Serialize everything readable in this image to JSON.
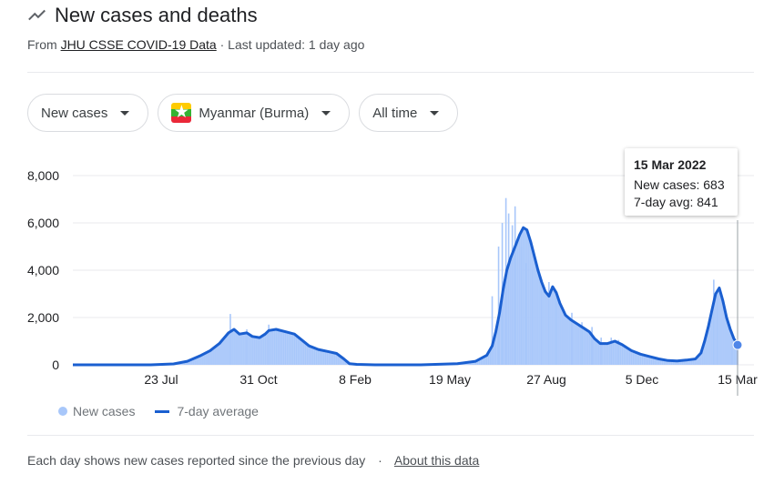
{
  "header": {
    "title": "New cases and deaths",
    "icon": "trending-icon"
  },
  "source": {
    "prefix": "From",
    "link": "JHU CSSE COVID-19 Data",
    "updated": "· Last updated: 1 day ago"
  },
  "filters": {
    "metric": "New cases",
    "location": "Myanmar (Burma)",
    "range": "All time"
  },
  "tooltip": {
    "date": "15 Mar 2022",
    "new_cases": "New cases: 683",
    "avg": "7-day avg: 841"
  },
  "legend": {
    "bars": "New cases",
    "line": "7-day average"
  },
  "footer": {
    "note": "Each day shows new cases reported since the previous day",
    "sep": "·",
    "link": "About this data"
  },
  "colors": {
    "bar": "#a8c7fa",
    "line": "#1a5fd0",
    "grid": "#e8eaed",
    "text": "#202124"
  },
  "chart_data": {
    "type": "bar",
    "title": "New cases and deaths",
    "y_ticks": [
      "8,000",
      "6,000",
      "4,000",
      "2,000",
      "0"
    ],
    "x_ticks": [
      "23 Jul",
      "31 Oct",
      "8 Feb",
      "19 May",
      "27 Aug",
      "5 Dec",
      "15 Mar"
    ],
    "ylim": [
      0,
      8000
    ],
    "grid": true,
    "legend_position": "bottom-left",
    "series": [
      {
        "name": "7-day average",
        "type": "line",
        "points": [
          [
            0,
            0
          ],
          [
            40,
            0
          ],
          [
            85,
            0
          ],
          [
            110,
            40
          ],
          [
            125,
            150
          ],
          [
            140,
            400
          ],
          [
            150,
            600
          ],
          [
            160,
            900
          ],
          [
            170,
            1350
          ],
          [
            176,
            1500
          ],
          [
            182,
            1300
          ],
          [
            190,
            1350
          ],
          [
            196,
            1200
          ],
          [
            204,
            1150
          ],
          [
            210,
            1300
          ],
          [
            214,
            1450
          ],
          [
            222,
            1500
          ],
          [
            232,
            1400
          ],
          [
            242,
            1300
          ],
          [
            250,
            1050
          ],
          [
            258,
            800
          ],
          [
            268,
            650
          ],
          [
            280,
            550
          ],
          [
            288,
            480
          ],
          [
            296,
            250
          ],
          [
            302,
            50
          ],
          [
            310,
            20
          ],
          [
            330,
            0
          ],
          [
            380,
            0
          ],
          [
            420,
            50
          ],
          [
            440,
            150
          ],
          [
            452,
            400
          ],
          [
            458,
            800
          ],
          [
            462,
            1400
          ],
          [
            466,
            2200
          ],
          [
            470,
            3200
          ],
          [
            474,
            4000
          ],
          [
            478,
            4500
          ],
          [
            484,
            5100
          ],
          [
            488,
            5500
          ],
          [
            492,
            5800
          ],
          [
            496,
            5700
          ],
          [
            500,
            5200
          ],
          [
            504,
            4600
          ],
          [
            508,
            4000
          ],
          [
            512,
            3500
          ],
          [
            516,
            3100
          ],
          [
            520,
            2900
          ],
          [
            524,
            3300
          ],
          [
            528,
            3050
          ],
          [
            532,
            2600
          ],
          [
            538,
            2100
          ],
          [
            544,
            1900
          ],
          [
            552,
            1700
          ],
          [
            558,
            1550
          ],
          [
            564,
            1400
          ],
          [
            570,
            1100
          ],
          [
            576,
            900
          ],
          [
            584,
            900
          ],
          [
            592,
            1000
          ],
          [
            600,
            850
          ],
          [
            610,
            600
          ],
          [
            620,
            450
          ],
          [
            630,
            350
          ],
          [
            640,
            250
          ],
          [
            650,
            180
          ],
          [
            660,
            160
          ],
          [
            670,
            200
          ],
          [
            680,
            250
          ],
          [
            686,
            500
          ],
          [
            690,
            1000
          ],
          [
            694,
            1600
          ],
          [
            698,
            2300
          ],
          [
            702,
            3000
          ],
          [
            706,
            3250
          ],
          [
            710,
            2700
          ],
          [
            714,
            2000
          ],
          [
            718,
            1500
          ],
          [
            722,
            1100
          ],
          [
            726,
            841
          ]
        ]
      },
      {
        "name": "New cases",
        "type": "bar",
        "spikes": [
          [
            172,
            2150
          ],
          [
            190,
            1500
          ],
          [
            214,
            1700
          ],
          [
            458,
            2900
          ],
          [
            465,
            5000
          ],
          [
            469,
            6000
          ],
          [
            473,
            7050
          ],
          [
            476,
            6400
          ],
          [
            480,
            5900
          ],
          [
            483,
            6700
          ],
          [
            490,
            5000
          ],
          [
            495,
            4300
          ],
          [
            502,
            4000
          ],
          [
            512,
            3600
          ],
          [
            520,
            3500
          ],
          [
            528,
            2900
          ],
          [
            545,
            2200
          ],
          [
            556,
            1800
          ],
          [
            567,
            1600
          ],
          [
            577,
            1150
          ],
          [
            588,
            1150
          ],
          [
            596,
            1050
          ],
          [
            700,
            3600
          ],
          [
            704,
            3000
          ],
          [
            720,
            1400
          ],
          [
            726,
            683
          ]
        ]
      }
    ]
  }
}
